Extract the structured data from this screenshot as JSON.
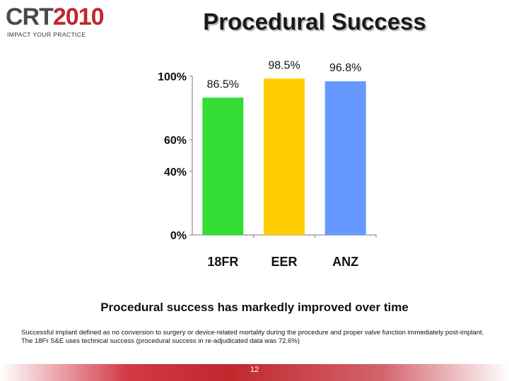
{
  "header": {
    "logo_crt": "CRT",
    "logo_year": "2010",
    "logo_tagline": "IMPACT YOUR PRACTICE",
    "title": "Procedural Success"
  },
  "chart_data": {
    "type": "bar",
    "categories": [
      "18FR",
      "EER",
      "ANZ"
    ],
    "values": [
      86.5,
      98.5,
      96.8
    ],
    "data_labels": [
      "86.5%",
      "98.5%",
      "96.8%"
    ],
    "bar_colors": [
      "#33dd33",
      "#ffcc00",
      "#6699ff"
    ],
    "y_tick_labels": [
      {
        "value": 0,
        "label": "0%"
      },
      {
        "value": 40,
        "label": "40%"
      },
      {
        "value": 60,
        "label": "60%"
      },
      {
        "value": 100,
        "label": "100%"
      }
    ],
    "ylim": [
      0,
      100
    ],
    "title": "",
    "xlabel": "",
    "ylabel": "",
    "grid": false
  },
  "takeaway": "Procedural success has markedly improved over time",
  "footnote": "Successful implant defined as no conversion to surgery or device-related mortality during the procedure and proper valve function immediately post-implant.  The 18Fr S&E uses technical success (procedural success in re-adjudicated data was 72.6%)",
  "footer": {
    "page_number": "12",
    "accent": "#c0272d"
  }
}
